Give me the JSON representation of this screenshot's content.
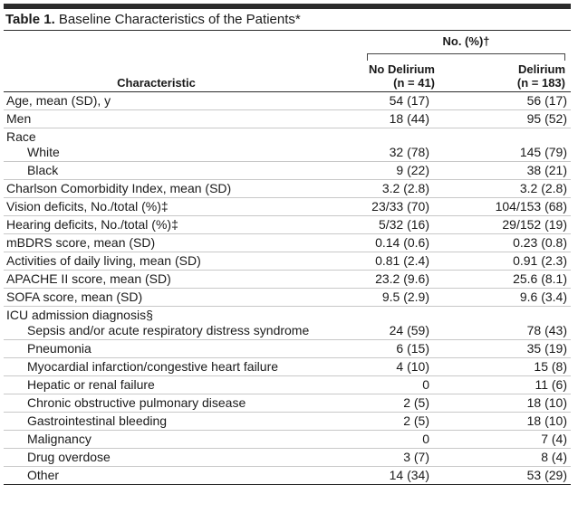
{
  "table": {
    "title_bold": "Table 1.",
    "title_rest": " Baseline Characteristics of the Patients*",
    "spanner": "No. (%)†",
    "col_char": "Characteristic",
    "col1_line1": "No Delirium",
    "col1_line2": "(n = 41)",
    "col2_line1": "Delirium",
    "col2_line2": "(n = 183)",
    "rows": [
      {
        "label": "Age, mean (SD), y",
        "v1": "54 (17)",
        "v2": "56 (17)"
      },
      {
        "label": "Men",
        "v1": "18 (44)",
        "v2": "95 (52)"
      },
      {
        "group": "Race",
        "label": "White",
        "v1": "32 (78)",
        "v2": "145 (79)"
      },
      {
        "label": "Black",
        "v1": "9 (22)",
        "v2": "38 (21)"
      },
      {
        "label": "Charlson Comorbidity Index, mean (SD)",
        "v1": "3.2 (2.8)",
        "v2": "3.2 (2.8)"
      },
      {
        "label": "Vision deficits, No./total (%)‡",
        "v1": "23/33 (70)",
        "v2": "104/153 (68)"
      },
      {
        "label": "Hearing deficits, No./total (%)‡",
        "v1": "5/32 (16)",
        "v2": "29/152 (19)"
      },
      {
        "label": "mBDRS score, mean (SD)",
        "v1": "0.14 (0.6)",
        "v2": "0.23 (0.8)"
      },
      {
        "label": "Activities of daily living, mean (SD)",
        "v1": "0.81 (2.4)",
        "v2": "0.91 (2.3)"
      },
      {
        "label": "APACHE II score, mean (SD)",
        "v1": "23.2 (9.6)",
        "v2": "25.6 (8.1)"
      },
      {
        "label": "SOFA score, mean (SD)",
        "v1": "9.5 (2.9)",
        "v2": "9.6 (3.4)"
      },
      {
        "group": "ICU admission diagnosis§",
        "label": "Sepsis and/or acute respiratory distress syndrome",
        "v1": "24 (59)",
        "v2": "78 (43)"
      },
      {
        "label": "Pneumonia",
        "v1": "6 (15)",
        "v2": "35 (19)"
      },
      {
        "label": "Myocardial infarction/congestive heart failure",
        "v1": "4 (10)",
        "v2": "15 (8)"
      },
      {
        "label": "Hepatic or renal failure",
        "v1": "0",
        "v2": "11 (6)"
      },
      {
        "label": "Chronic obstructive pulmonary disease",
        "v1": "2 (5)",
        "v2": "18 (10)"
      },
      {
        "label": "Gastrointestinal bleeding",
        "v1": "2 (5)",
        "v2": "18 (10)"
      },
      {
        "label": "Malignancy",
        "v1": "0",
        "v2": "7 (4)"
      },
      {
        "label": "Drug overdose",
        "v1": "3 (7)",
        "v2": "8 (4)"
      },
      {
        "label": "Other",
        "v1": "14 (34)",
        "v2": "53 (29)"
      }
    ]
  }
}
